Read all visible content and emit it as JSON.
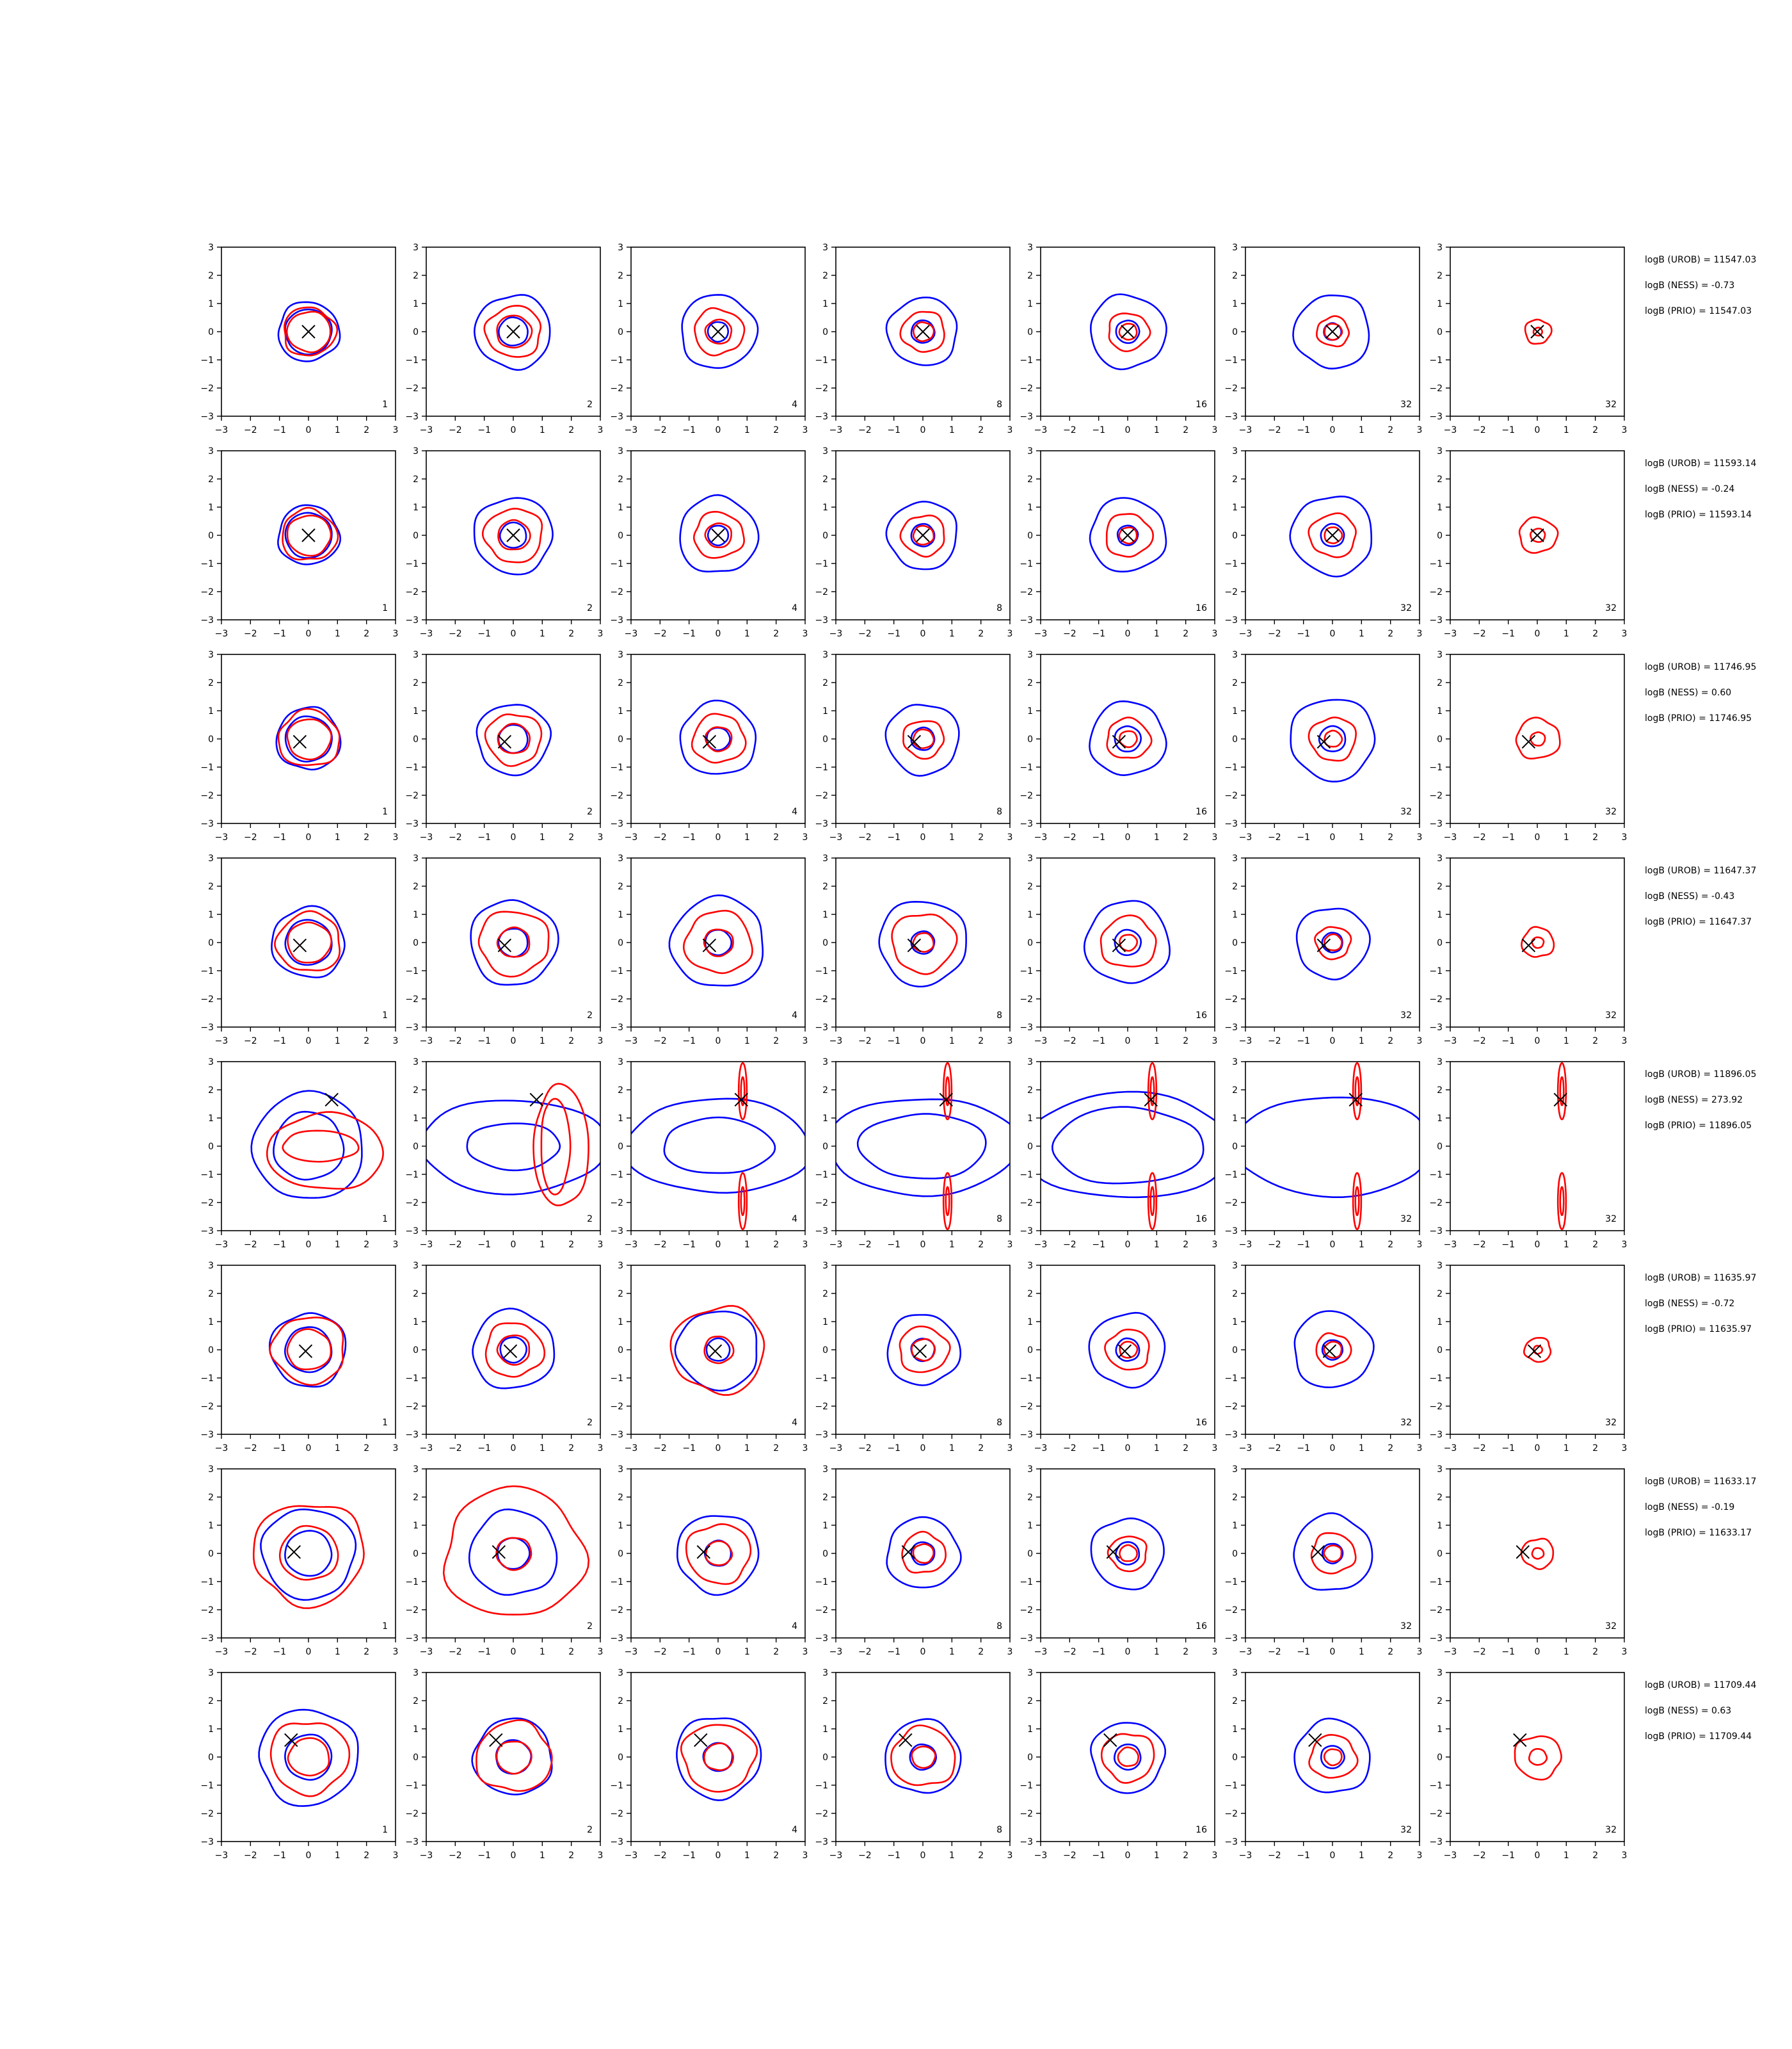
{
  "figure": {
    "xlim": [
      -3,
      3
    ],
    "ylim": [
      -3,
      3
    ],
    "xticks": [
      -3,
      -2,
      -1,
      0,
      1,
      2,
      3
    ],
    "yticks": [
      -3,
      -2,
      -1,
      0,
      1,
      2,
      3
    ],
    "xtick_labels": [
      "−3",
      "−2",
      "−1",
      "0",
      "1",
      "2",
      "3"
    ],
    "ytick_labels": [
      "−3",
      "−2",
      "−1",
      "0",
      "1",
      "2",
      "3"
    ],
    "colors": {
      "blue": "#0000ff",
      "red": "#ff0000",
      "marker": "#000000",
      "axes": "#000000"
    }
  },
  "chart_data": [
    {
      "type": "contour-grid",
      "row": 1,
      "marker": [
        0,
        0
      ],
      "panels": [
        {
          "label": "1",
          "blue": [
            0.8,
            1.05
          ],
          "red": [
            0.75,
            0.9
          ]
        },
        {
          "label": "2",
          "blue": [
            0.5,
            1.3
          ],
          "red": [
            0.6,
            0.95
          ]
        },
        {
          "label": "4",
          "blue": [
            0.35,
            1.3
          ],
          "red": [
            0.45,
            0.85
          ]
        },
        {
          "label": "8",
          "blue": [
            0.4,
            1.2
          ],
          "red": [
            0.35,
            0.75
          ]
        },
        {
          "label": "16",
          "blue": [
            0.4,
            1.3
          ],
          "red": [
            0.3,
            0.7
          ]
        },
        {
          "label": "32",
          "blue": [
            0.3,
            1.3
          ],
          "red": [
            0.3,
            0.55
          ]
        },
        {
          "label": "32",
          "blue": [],
          "red": [
            0.15,
            0.45
          ]
        }
      ],
      "annotations": [
        "logB (UROB) = 11547.03",
        "logB (NESS) = -0.73",
        "logB (PRIO) = 11547.03"
      ]
    },
    {
      "type": "contour-grid",
      "row": 2,
      "marker": [
        0,
        0
      ],
      "panels": [
        {
          "label": "1",
          "blue": [
            0.8,
            1.05
          ],
          "red": [
            0.75,
            0.95
          ]
        },
        {
          "label": "2",
          "blue": [
            0.45,
            1.35
          ],
          "red": [
            0.55,
            1.0
          ]
        },
        {
          "label": "4",
          "blue": [
            0.35,
            1.35
          ],
          "red": [
            0.45,
            0.85
          ]
        },
        {
          "label": "8",
          "blue": [
            0.4,
            1.2
          ],
          "red": [
            0.35,
            0.75
          ]
        },
        {
          "label": "16",
          "blue": [
            0.35,
            1.3
          ],
          "red": [
            0.3,
            0.8
          ]
        },
        {
          "label": "32",
          "blue": [
            0.4,
            1.4
          ],
          "red": [
            0.3,
            0.8
          ]
        },
        {
          "label": "32",
          "blue": [],
          "red": [
            0.25,
            0.65
          ]
        }
      ],
      "annotations": [
        "logB (UROB) = 11593.14",
        "logB (NESS) = -0.24",
        "logB (PRIO) = 11593.14"
      ]
    },
    {
      "type": "contour-grid",
      "row": 3,
      "marker": [
        -0.3,
        -0.1
      ],
      "panels": [
        {
          "label": "1",
          "blue": [
            0.8,
            1.1
          ],
          "red": [
            0.75,
            1.05
          ]
        },
        {
          "label": "2",
          "blue": [
            0.5,
            1.25
          ],
          "red": [
            0.55,
            0.95
          ]
        },
        {
          "label": "4",
          "blue": [
            0.4,
            1.3
          ],
          "red": [
            0.45,
            0.9
          ]
        },
        {
          "label": "8",
          "blue": [
            0.4,
            1.25
          ],
          "red": [
            0.35,
            0.7
          ]
        },
        {
          "label": "16",
          "blue": [
            0.45,
            1.3
          ],
          "red": [
            0.3,
            0.75
          ]
        },
        {
          "label": "32",
          "blue": [
            0.45,
            1.45
          ],
          "red": [
            0.3,
            0.8
          ]
        },
        {
          "label": "32",
          "blue": [],
          "red": [
            0.25,
            0.75
          ]
        }
      ],
      "annotations": [
        "logB (UROB) = 11746.95",
        "logB (NESS) = 0.60",
        "logB (PRIO) = 11746.95"
      ]
    },
    {
      "type": "contour-grid",
      "row": 4,
      "marker": [
        -0.3,
        -0.1
      ],
      "panels": [
        {
          "label": "1",
          "blue": [
            0.8,
            1.25
          ],
          "red": [
            0.75,
            1.1
          ]
        },
        {
          "label": "2",
          "blue": [
            0.5,
            1.5
          ],
          "red": [
            0.55,
            1.2
          ]
        },
        {
          "label": "4",
          "blue": [
            0.45,
            1.6
          ],
          "red": [
            0.5,
            1.15
          ]
        },
        {
          "label": "8",
          "blue": [
            0.4,
            1.5
          ],
          "red": [
            0.35,
            1.1
          ]
        },
        {
          "label": "16",
          "blue": [
            0.45,
            1.45
          ],
          "red": [
            0.3,
            0.95
          ]
        },
        {
          "label": "32",
          "blue": [
            0.35,
            1.25
          ],
          "red": [
            0.3,
            0.6
          ]
        },
        {
          "label": "32",
          "blue": [],
          "red": [
            0.2,
            0.55
          ]
        }
      ],
      "annotations": [
        "logB (UROB) = 11647.37",
        "logB (NESS) = -0.43",
        "logB (PRIO) = 11647.37"
      ]
    },
    {
      "type": "contour-grid",
      "row": 5,
      "marker": [
        0.8,
        1.65
      ],
      "panels": [
        {
          "label": "1",
          "blue": [
            1.2,
            1.9
          ],
          "red": [
            1.2,
            2.6
          ]
        },
        {
          "label": "2",
          "blue": [
            1.6,
            3.2
          ],
          "red": [
            1.0,
            2.0
          ]
        },
        {
          "label": "4",
          "blue": [
            1.9,
            3.2
          ],
          "red": []
        },
        {
          "label": "8",
          "blue": [
            2.2,
            3.3
          ],
          "red": []
        },
        {
          "label": "16",
          "blue": [
            2.6,
            3.6
          ],
          "red": []
        },
        {
          "label": "32",
          "blue": [
            3.4
          ],
          "red": []
        },
        {
          "label": "32",
          "blue": [],
          "red": []
        }
      ],
      "annotations": [
        "logB (UROB) = 11896.05",
        "logB (NESS) = 273.92",
        "logB (PRIO) = 11896.05"
      ]
    },
    {
      "type": "contour-grid",
      "row": 6,
      "marker": [
        -0.1,
        -0.05
      ],
      "panels": [
        {
          "label": "1",
          "blue": [
            0.8,
            1.3
          ],
          "red": [
            0.75,
            1.25
          ]
        },
        {
          "label": "2",
          "blue": [
            0.45,
            1.4
          ],
          "red": [
            0.55,
            1.0
          ]
        },
        {
          "label": "4",
          "blue": [
            0.4,
            1.4
          ],
          "red": [
            0.5,
            1.6
          ]
        },
        {
          "label": "8",
          "blue": [
            0.4,
            1.25
          ],
          "red": [
            0.4,
            0.85
          ]
        },
        {
          "label": "16",
          "blue": [
            0.4,
            1.3
          ],
          "red": [
            0.3,
            0.75
          ]
        },
        {
          "label": "32",
          "blue": [
            0.35,
            1.35
          ],
          "red": [
            0.3,
            0.6
          ]
        },
        {
          "label": "32",
          "blue": [],
          "red": [
            0.15,
            0.45
          ]
        }
      ],
      "annotations": [
        "logB (UROB) = 11635.97",
        "logB (NESS) = -0.72",
        "logB (PRIO) = 11635.97"
      ]
    },
    {
      "type": "contour-grid",
      "row": 7,
      "marker": [
        -0.5,
        0.05
      ],
      "panels": [
        {
          "label": "1",
          "blue": [
            0.8,
            1.6
          ],
          "red": [
            1.0,
            1.9
          ]
        },
        {
          "label": "2",
          "blue": [
            0.55,
            1.5
          ],
          "red": [
            0.6,
            2.4
          ]
        },
        {
          "label": "4",
          "blue": [
            0.45,
            1.4
          ],
          "red": [
            0.45,
            1.1
          ]
        },
        {
          "label": "8",
          "blue": [
            0.4,
            1.25
          ],
          "red": [
            0.35,
            0.75
          ]
        },
        {
          "label": "16",
          "blue": [
            0.4,
            1.25
          ],
          "red": [
            0.3,
            0.65
          ]
        },
        {
          "label": "32",
          "blue": [
            0.35,
            1.35
          ],
          "red": [
            0.3,
            0.75
          ]
        },
        {
          "label": "32",
          "blue": [],
          "red": [
            0.2,
            0.55
          ]
        }
      ],
      "annotations": [
        "logB (UROB) = 11633.17",
        "logB (NESS) = -0.19",
        "logB (PRIO) = 11633.17"
      ]
    },
    {
      "type": "contour-grid",
      "row": 8,
      "marker": [
        -0.6,
        0.6
      ],
      "panels": [
        {
          "label": "1",
          "blue": [
            0.8,
            1.7
          ],
          "red": [
            0.7,
            1.35
          ]
        },
        {
          "label": "2",
          "blue": [
            0.6,
            1.35
          ],
          "red": [
            0.6,
            1.3
          ]
        },
        {
          "label": "4",
          "blue": [
            0.5,
            1.45
          ],
          "red": [
            0.5,
            1.25
          ]
        },
        {
          "label": "8",
          "blue": [
            0.45,
            1.3
          ],
          "red": [
            0.4,
            1.1
          ]
        },
        {
          "label": "16",
          "blue": [
            0.45,
            1.25
          ],
          "red": [
            0.35,
            0.9
          ]
        },
        {
          "label": "32",
          "blue": [
            0.4,
            1.3
          ],
          "red": [
            0.3,
            0.8
          ]
        },
        {
          "label": "32",
          "blue": [],
          "red": [
            0.3,
            0.8
          ]
        }
      ],
      "annotations": [
        "logB (UROB) = 11709.44",
        "logB (NESS) = 0.63",
        "logB (PRIO) = 11709.44"
      ]
    }
  ]
}
